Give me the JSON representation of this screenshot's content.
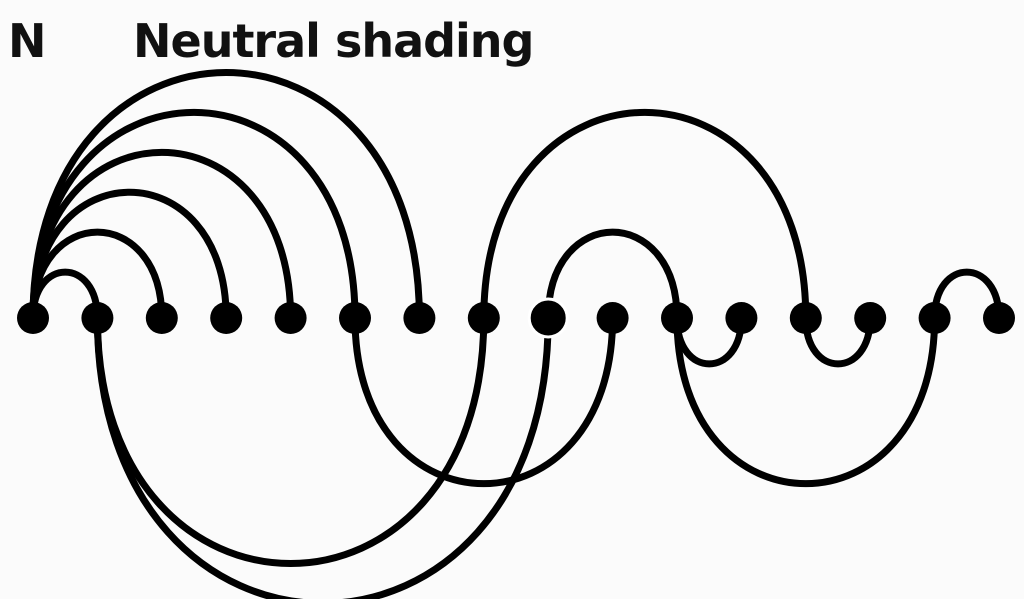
{
  "panel": {
    "letter": "N",
    "title": "Neutral shading"
  },
  "diagram": {
    "node_count": 16,
    "highlighted_node": 8,
    "upper_arcs": [
      [
        0,
        1
      ],
      [
        0,
        2
      ],
      [
        0,
        3
      ],
      [
        0,
        4
      ],
      [
        0,
        5
      ],
      [
        0,
        6
      ],
      [
        7,
        12
      ],
      [
        8,
        10
      ],
      [
        14,
        15
      ]
    ],
    "lower_arcs": [
      [
        1,
        7
      ],
      [
        1,
        8
      ],
      [
        5,
        9
      ],
      [
        10,
        11
      ],
      [
        12,
        13
      ],
      [
        10,
        14
      ]
    ],
    "colors": {
      "ink": "#000000",
      "background": "#fbfbfb"
    }
  }
}
